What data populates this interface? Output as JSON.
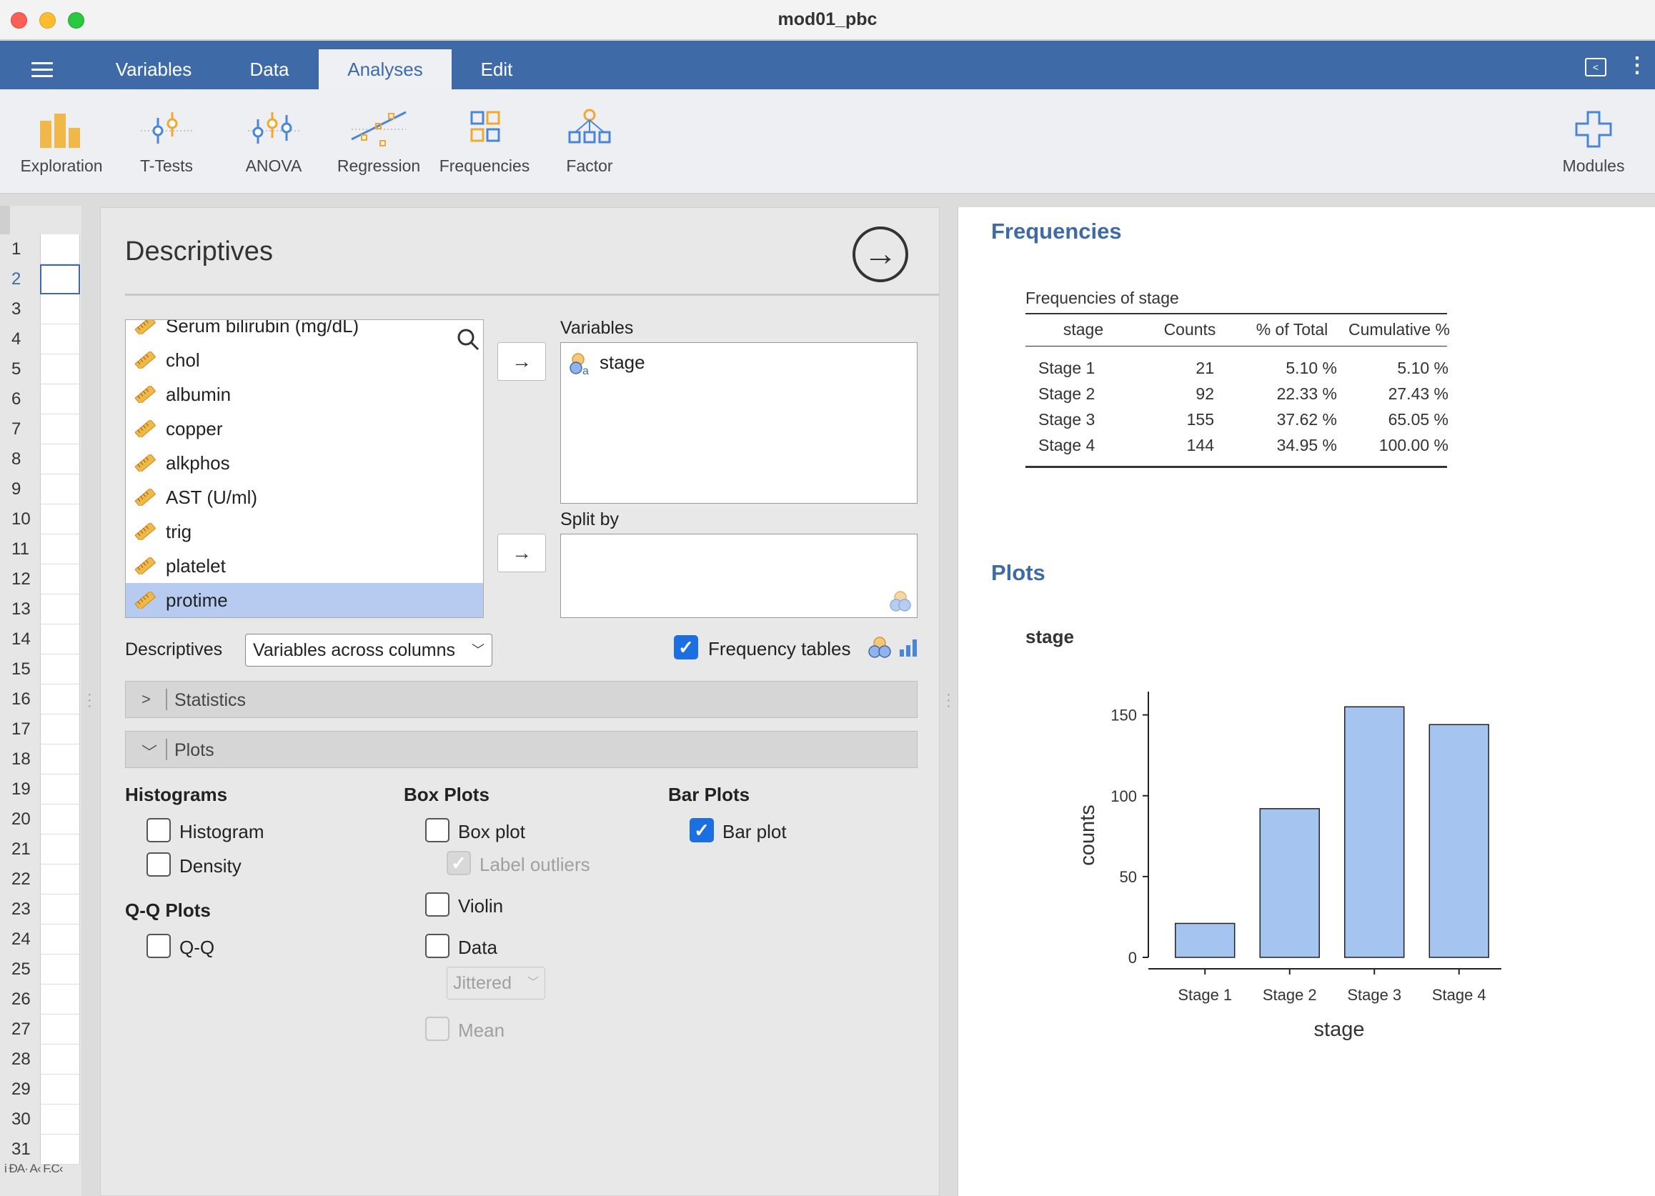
{
  "window": {
    "title": "mod01_pbc"
  },
  "menubar": {
    "tabs": [
      {
        "label": "Variables"
      },
      {
        "label": "Data"
      },
      {
        "label": "Analyses",
        "active": true
      },
      {
        "label": "Edit"
      }
    ]
  },
  "ribbon": {
    "items": [
      {
        "label": "Exploration",
        "icon": "exploration-icon"
      },
      {
        "label": "T-Tests",
        "icon": "t-tests-icon"
      },
      {
        "label": "ANOVA",
        "icon": "anova-icon"
      },
      {
        "label": "Regression",
        "icon": "regression-icon"
      },
      {
        "label": "Frequencies",
        "icon": "frequencies-icon"
      },
      {
        "label": "Factor",
        "icon": "factor-icon"
      }
    ],
    "modules_label": "Modules"
  },
  "sheet": {
    "rows": [
      "1",
      "2",
      "3",
      "4",
      "5",
      "6",
      "7",
      "8",
      "9",
      "10",
      "11",
      "12",
      "13",
      "14",
      "15",
      "16",
      "17",
      "18",
      "19",
      "20",
      "21",
      "22",
      "23",
      "24",
      "25",
      "26",
      "27",
      "28",
      "29",
      "30",
      "31"
    ],
    "selected_row": "2",
    "footer": "i  ÐA·  A‹ F.C‹"
  },
  "analysis": {
    "title": "Descriptives",
    "variables_list": [
      "Serum bilirubin (mg/dL)",
      "chol",
      "albumin",
      "copper",
      "alkphos",
      "AST (U/ml)",
      "trig",
      "platelet",
      "protime"
    ],
    "selected_variable": "protime",
    "variables_box_label": "Variables",
    "variables_box_items": [
      "stage"
    ],
    "splitby_label": "Split by",
    "descriptives_label": "Descriptives",
    "descriptives_select": "Variables across columns",
    "frequency_tables_label": "Frequency tables",
    "frequency_tables_checked": true,
    "statistics_section": "Statistics",
    "plots_section": "Plots",
    "histograms": {
      "header": "Histograms",
      "histogram": "Histogram",
      "density": "Density"
    },
    "qq": {
      "header": "Q-Q Plots",
      "qq": "Q-Q"
    },
    "boxplots": {
      "header": "Box Plots",
      "box_plot": "Box plot",
      "label_outliers": "Label outliers",
      "violin": "Violin",
      "data": "Data",
      "jittered": "Jittered",
      "mean": "Mean"
    },
    "barplots": {
      "header": "Bar Plots",
      "bar_plot": "Bar plot",
      "bar_plot_checked": true
    }
  },
  "results": {
    "frequencies_heading": "Frequencies",
    "table": {
      "caption": "Frequencies of stage",
      "headers": [
        "stage",
        "Counts",
        "% of Total",
        "Cumulative %"
      ],
      "rows": [
        [
          "Stage 1",
          "21",
          "5.10 %",
          "5.10 %"
        ],
        [
          "Stage 2",
          "92",
          "22.33 %",
          "27.43 %"
        ],
        [
          "Stage 3",
          "155",
          "37.62 %",
          "65.05 %"
        ],
        [
          "Stage 4",
          "144",
          "34.95 %",
          "100.00 %"
        ]
      ]
    },
    "plots_heading": "Plots",
    "plot_title": "stage"
  },
  "chart_data": {
    "type": "bar",
    "title": "stage",
    "categories": [
      "Stage 1",
      "Stage 2",
      "Stage 3",
      "Stage 4"
    ],
    "values": [
      21,
      92,
      155,
      144
    ],
    "xlabel": "stage",
    "ylabel": "counts",
    "ylim": [
      0,
      160
    ],
    "yticks": [
      0,
      50,
      100,
      150
    ],
    "bar_color": "#a6c4f0",
    "grid": false
  },
  "colors": {
    "accent": "#3e6ba8",
    "checkbox": "#1c6fe0",
    "selection": "#b6cbef",
    "ruler_icon": "#f0a830"
  }
}
